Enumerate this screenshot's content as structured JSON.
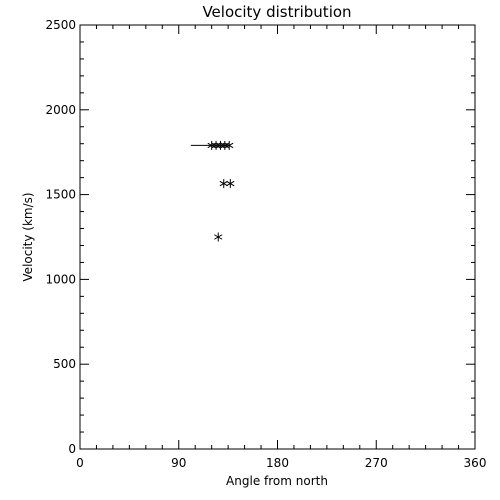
{
  "chart_data": {
    "type": "scatter",
    "title": "Velocity distribution",
    "xlabel": "Angle from north",
    "ylabel": "Velocity (km/s)",
    "xlim": [
      0,
      360
    ],
    "ylim": [
      0,
      2500
    ],
    "xticks": [
      0,
      90,
      180,
      270,
      360
    ],
    "yticks": [
      0,
      500,
      1000,
      1500,
      2000,
      2500
    ],
    "grid": false,
    "points": [
      {
        "x": 120,
        "y": 1790
      },
      {
        "x": 124,
        "y": 1790
      },
      {
        "x": 128,
        "y": 1790
      },
      {
        "x": 132,
        "y": 1790
      },
      {
        "x": 136,
        "y": 1790
      },
      {
        "x": 131,
        "y": 1565
      },
      {
        "x": 137,
        "y": 1565
      },
      {
        "x": 126,
        "y": 1250
      }
    ],
    "segments": [
      {
        "x1": 101,
        "y1": 1790,
        "x2": 137,
        "y2": 1790
      }
    ]
  }
}
